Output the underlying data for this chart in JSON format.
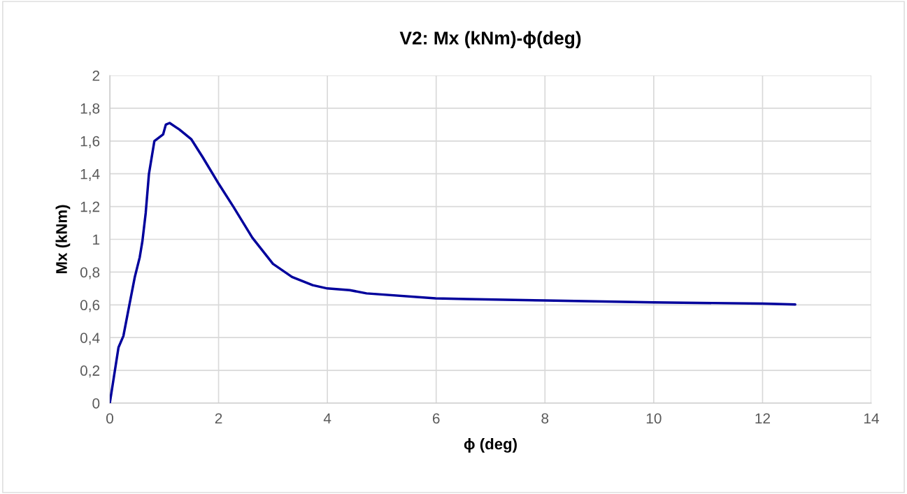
{
  "chart_data": {
    "type": "line",
    "title": "V2: Mx (kNm)-ϕ(deg)",
    "xlabel": "ϕ (deg)",
    "ylabel": "Mx (kNm)",
    "series": [
      {
        "color": "#00009c",
        "x": [
          0,
          0.16,
          0.25,
          0.36,
          0.46,
          0.55,
          0.6,
          0.66,
          0.72,
          0.82,
          0.98,
          1.03,
          1.1,
          1.28,
          1.5,
          1.71,
          2.0,
          2.27,
          2.62,
          3.0,
          3.35,
          3.73,
          4.0,
          4.41,
          4.72,
          5.99,
          6.56,
          8.0,
          10.0,
          12.0,
          12.6
        ],
        "values": [
          0,
          0.34,
          0.41,
          0.6,
          0.77,
          0.89,
          0.99,
          1.16,
          1.4,
          1.6,
          1.64,
          1.7,
          1.71,
          1.67,
          1.61,
          1.5,
          1.34,
          1.2,
          1.01,
          0.85,
          0.77,
          0.72,
          0.7,
          0.69,
          0.67,
          0.64,
          0.635,
          0.627,
          0.615,
          0.608,
          0.602
        ]
      }
    ],
    "xlim": [
      0,
      14
    ],
    "xticks": [
      0,
      2,
      4,
      6,
      8,
      10,
      12,
      14
    ],
    "ylim": [
      0,
      2
    ],
    "yticks": [
      0,
      {
        "value": 0.2,
        "label": "0,2"
      },
      {
        "value": 0.4,
        "label": "0,4"
      },
      {
        "value": 0.6,
        "label": "0,6"
      },
      {
        "value": 0.8,
        "label": "0,8"
      },
      1,
      {
        "value": 1.2,
        "label": "1,2"
      },
      {
        "value": 1.4,
        "label": "1,4"
      },
      {
        "value": 1.6,
        "label": "1,6"
      },
      {
        "value": 1.8,
        "label": "1,8"
      },
      2
    ],
    "grid": true,
    "marker": "none",
    "line_style": "solid",
    "legend": false
  }
}
